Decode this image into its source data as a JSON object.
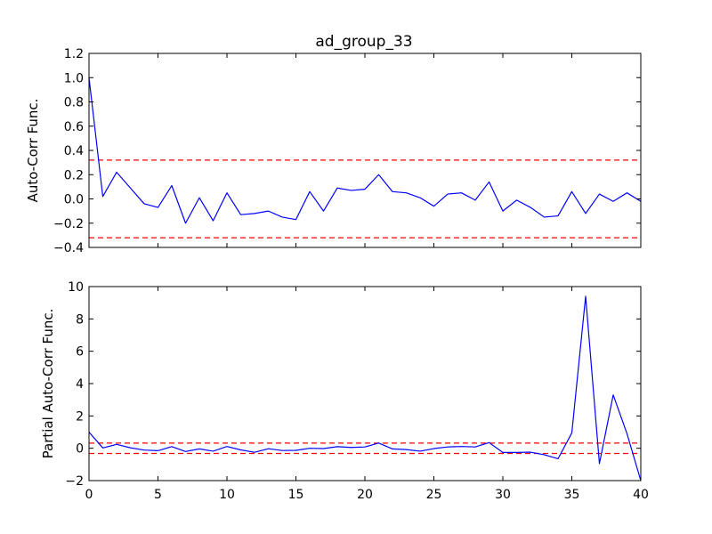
{
  "title": "ad_group_33",
  "chart_data": [
    {
      "type": "line",
      "title": "ad_group_33",
      "xlabel": "",
      "ylabel": "Auto-Corr Func.",
      "xlim": [
        0,
        40
      ],
      "ylim": [
        -0.4,
        1.2
      ],
      "yticks": [
        "−0.4",
        "−0.2",
        "0.0",
        "0.2",
        "0.4",
        "0.6",
        "0.8",
        "1.0",
        "1.2"
      ],
      "ytick_values": [
        -0.4,
        -0.2,
        0.0,
        0.2,
        0.4,
        0.6,
        0.8,
        1.0,
        1.2
      ],
      "xticks_visible": false,
      "series": [
        {
          "color": "#0000ff",
          "x": [
            0,
            1,
            2,
            3,
            4,
            5,
            6,
            7,
            8,
            9,
            10,
            11,
            12,
            13,
            14,
            15,
            16,
            17,
            18,
            19,
            20,
            21,
            22,
            23,
            24,
            25,
            26,
            27,
            28,
            29,
            30,
            31,
            32,
            33,
            34,
            35,
            36,
            37,
            38,
            39,
            40
          ],
          "values": [
            1.0,
            0.02,
            0.22,
            0.09,
            -0.04,
            -0.07,
            0.11,
            -0.2,
            0.01,
            -0.18,
            0.05,
            -0.13,
            -0.12,
            -0.1,
            -0.15,
            -0.17,
            0.06,
            -0.1,
            0.09,
            0.07,
            0.08,
            0.2,
            0.06,
            0.05,
            0.01,
            -0.06,
            0.04,
            0.05,
            -0.01,
            0.14,
            -0.1,
            -0.01,
            -0.07,
            -0.15,
            -0.14,
            0.06,
            -0.12,
            0.04,
            -0.02,
            0.05,
            -0.02
          ]
        }
      ],
      "confidence_bands": {
        "values": [
          0.32,
          -0.32
        ],
        "color": "#ff0000",
        "style": "dashed"
      }
    },
    {
      "type": "line",
      "xlabel": "",
      "ylabel": "Partial Auto-Corr Func.",
      "xlim": [
        0,
        40
      ],
      "ylim": [
        -2,
        10
      ],
      "xticks": [
        "0",
        "5",
        "10",
        "15",
        "20",
        "25",
        "30",
        "35",
        "40"
      ],
      "xtick_values": [
        0,
        5,
        10,
        15,
        20,
        25,
        30,
        35,
        40
      ],
      "yticks": [
        "−2",
        "0",
        "2",
        "4",
        "6",
        "8",
        "10"
      ],
      "ytick_values": [
        -2,
        0,
        2,
        4,
        6,
        8,
        10
      ],
      "series": [
        {
          "color": "#0000ff",
          "x": [
            0,
            1,
            2,
            3,
            4,
            5,
            6,
            7,
            8,
            9,
            10,
            11,
            12,
            13,
            14,
            15,
            16,
            17,
            18,
            19,
            20,
            21,
            22,
            23,
            24,
            25,
            26,
            27,
            28,
            29,
            30,
            31,
            32,
            33,
            34,
            35,
            36,
            37,
            38,
            39,
            40
          ],
          "values": [
            1.0,
            0.02,
            0.24,
            0.03,
            -0.11,
            -0.15,
            0.1,
            -0.2,
            -0.04,
            -0.18,
            0.11,
            -0.1,
            -0.25,
            -0.03,
            -0.14,
            -0.13,
            0.0,
            -0.02,
            0.1,
            0.05,
            0.08,
            0.32,
            -0.04,
            -0.08,
            -0.18,
            -0.02,
            0.08,
            0.11,
            0.08,
            0.35,
            -0.26,
            -0.26,
            -0.24,
            -0.4,
            -0.65,
            0.95,
            9.4,
            -0.95,
            3.3,
            0.9,
            -2.0
          ]
        }
      ],
      "confidence_bands": {
        "values": [
          0.32,
          -0.32
        ],
        "color": "#ff0000",
        "style": "dashed"
      }
    }
  ]
}
